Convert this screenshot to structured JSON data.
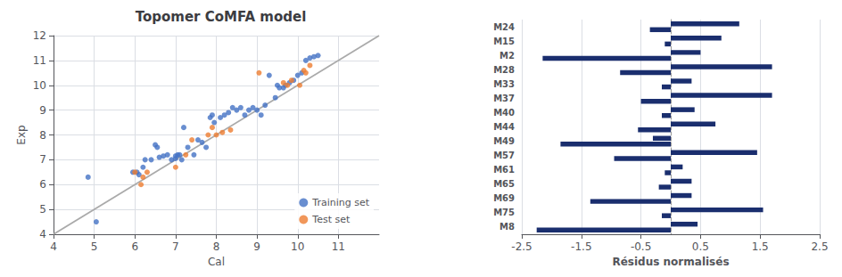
{
  "chart_data": [
    {
      "type": "scatter",
      "title": "Topomer CoMFA model",
      "xlabel": "Cal",
      "ylabel": "Exp",
      "xlim": [
        4,
        12
      ],
      "ylim": [
        4,
        12
      ],
      "xticks": [
        4,
        5,
        6,
        7,
        8,
        9,
        10,
        11
      ],
      "yticks": [
        4,
        5,
        6,
        7,
        8,
        9,
        10,
        11,
        12
      ],
      "grid": true,
      "legend": "lower right",
      "series": [
        {
          "type": "line",
          "color": "#aaaaaa",
          "x": [
            4,
            12
          ],
          "values": [
            4,
            12
          ]
        },
        {
          "name": "Training set",
          "type": "scatter",
          "color": "#4472c4",
          "x": [
            4.85,
            5.05,
            5.95,
            6.05,
            6.1,
            6.2,
            6.25,
            6.4,
            6.5,
            6.55,
            6.6,
            6.7,
            6.8,
            6.9,
            7.0,
            7.0,
            7.05,
            7.1,
            7.15,
            7.2,
            7.3,
            7.45,
            7.55,
            7.65,
            7.75,
            7.85,
            7.9,
            7.95,
            8.1,
            8.2,
            8.3,
            8.4,
            8.5,
            8.6,
            8.7,
            8.8,
            8.9,
            9.0,
            9.1,
            9.2,
            9.3,
            9.45,
            9.5,
            9.55,
            9.65,
            9.7,
            9.8,
            9.9,
            10.0,
            10.1,
            10.2,
            10.3,
            10.4,
            10.5
          ],
          "values": [
            6.3,
            4.5,
            6.5,
            6.5,
            6.4,
            6.7,
            7.0,
            7.0,
            7.6,
            7.5,
            7.1,
            7.15,
            7.2,
            7.0,
            7.05,
            7.15,
            7.2,
            7.2,
            7.0,
            8.3,
            7.5,
            7.2,
            7.8,
            7.7,
            7.5,
            8.7,
            8.8,
            8.5,
            8.7,
            8.8,
            8.9,
            9.1,
            9.0,
            9.1,
            8.8,
            9.0,
            9.1,
            9.0,
            8.8,
            9.2,
            10.4,
            9.5,
            10.0,
            9.9,
            9.9,
            10.0,
            10.1,
            10.2,
            10.4,
            10.5,
            11.0,
            11.1,
            11.15,
            11.2
          ]
        },
        {
          "name": "Test set",
          "type": "scatter",
          "color": "#ed7d31",
          "x": [
            6.0,
            6.15,
            6.2,
            6.3,
            7.0,
            7.25,
            7.4,
            7.8,
            7.9,
            8.0,
            8.15,
            8.35,
            9.05,
            9.65,
            9.75,
            9.85,
            10.05,
            10.15,
            10.2,
            10.3
          ],
          "values": [
            6.5,
            6.0,
            6.3,
            6.5,
            6.7,
            7.2,
            7.8,
            8.0,
            8.3,
            8.0,
            8.1,
            8.2,
            10.5,
            10.1,
            10.0,
            10.2,
            10.0,
            10.6,
            10.5,
            10.8
          ]
        }
      ]
    },
    {
      "type": "bar",
      "orientation": "horizontal",
      "annotations": [
        "Résidus normalisés"
      ],
      "categories": [
        "M24",
        "M15",
        "M2",
        "M28",
        "M33",
        "M37",
        "M40",
        "M44",
        "M49",
        "M57",
        "M61",
        "M65",
        "M69",
        "M75",
        "M8"
      ],
      "xlim": [
        -2.5,
        2.5
      ],
      "xticks": [
        -2.5,
        -1.5,
        -0.5,
        0.5,
        1.5,
        2.5
      ],
      "grid": true,
      "color": "#1a2e6e",
      "series": [
        {
          "values": [
            1.15,
            0.85,
            0.5,
            1.7,
            0.35,
            1.7,
            0.4,
            0.75,
            -0.3,
            1.45,
            0.2,
            0.35,
            0.35,
            1.55,
            0.45
          ]
        },
        {
          "values": [
            -0.35,
            -0.1,
            -2.15,
            -0.85,
            -0.15,
            -0.5,
            -0.15,
            -0.55,
            -1.85,
            -0.95,
            -0.1,
            -0.2,
            -1.35,
            -0.15,
            -2.25
          ]
        }
      ]
    }
  ]
}
